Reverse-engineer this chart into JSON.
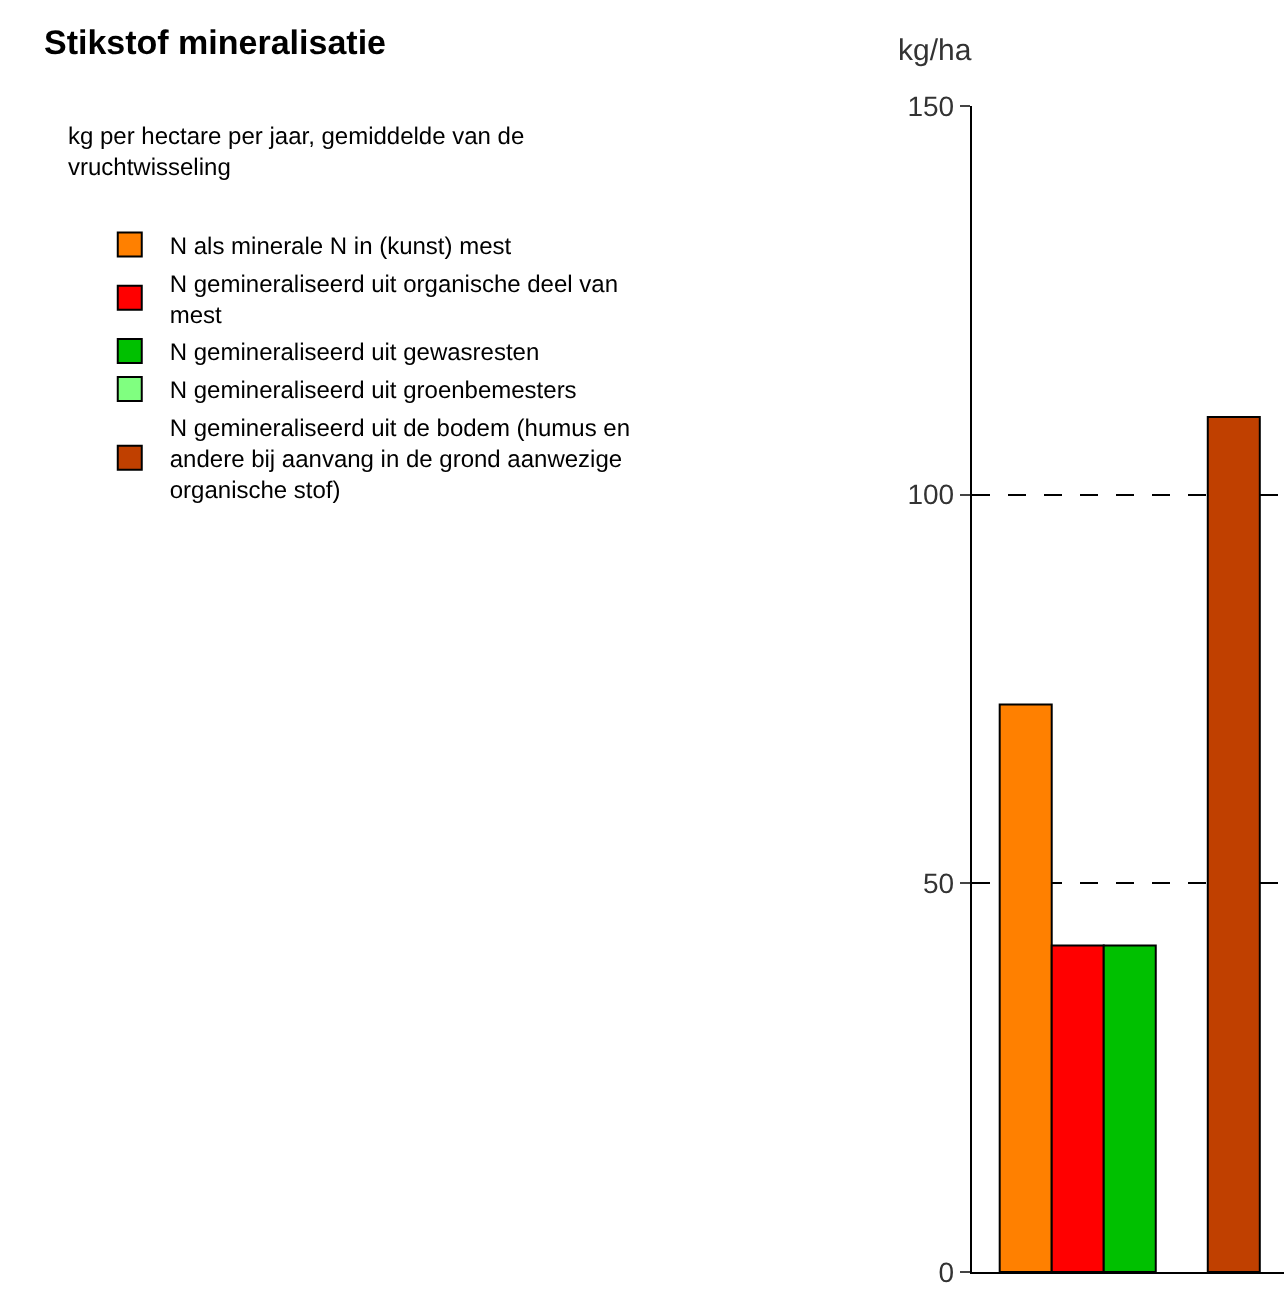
{
  "chart_data": {
    "type": "bar",
    "title": "Stikstof mineralisatie",
    "subtitle": "kg per hectare per jaar, gemiddelde van de vruchtwisseling",
    "ylabel": "kg/ha",
    "categories": [
      null
    ],
    "series": [
      {
        "name": "N als minerale N in (kunst) mest",
        "color": "#ff8000",
        "values": [
          73
        ]
      },
      {
        "name": "N gemineraliseerd uit organische deel van mest",
        "color": "#ff0000",
        "values": [
          42
        ]
      },
      {
        "name": "N gemineraliseerd uit gewasresten",
        "color": "#00c000",
        "values": [
          42
        ]
      },
      {
        "name": "N gemineraliseerd uit groenbemesters",
        "color": "#80ff80",
        "values": [
          null
        ]
      },
      {
        "name": "N gemineraliseerd uit de bodem (humus en andere bij aanvang in de grond aanwezige organische stof)",
        "color": "#c04000",
        "values": [
          110
        ]
      }
    ],
    "ylim": [
      0,
      150
    ],
    "yticks": [
      0,
      50,
      100,
      150
    ],
    "grid": "y",
    "legend": "left",
    "tick_labels": "y"
  }
}
